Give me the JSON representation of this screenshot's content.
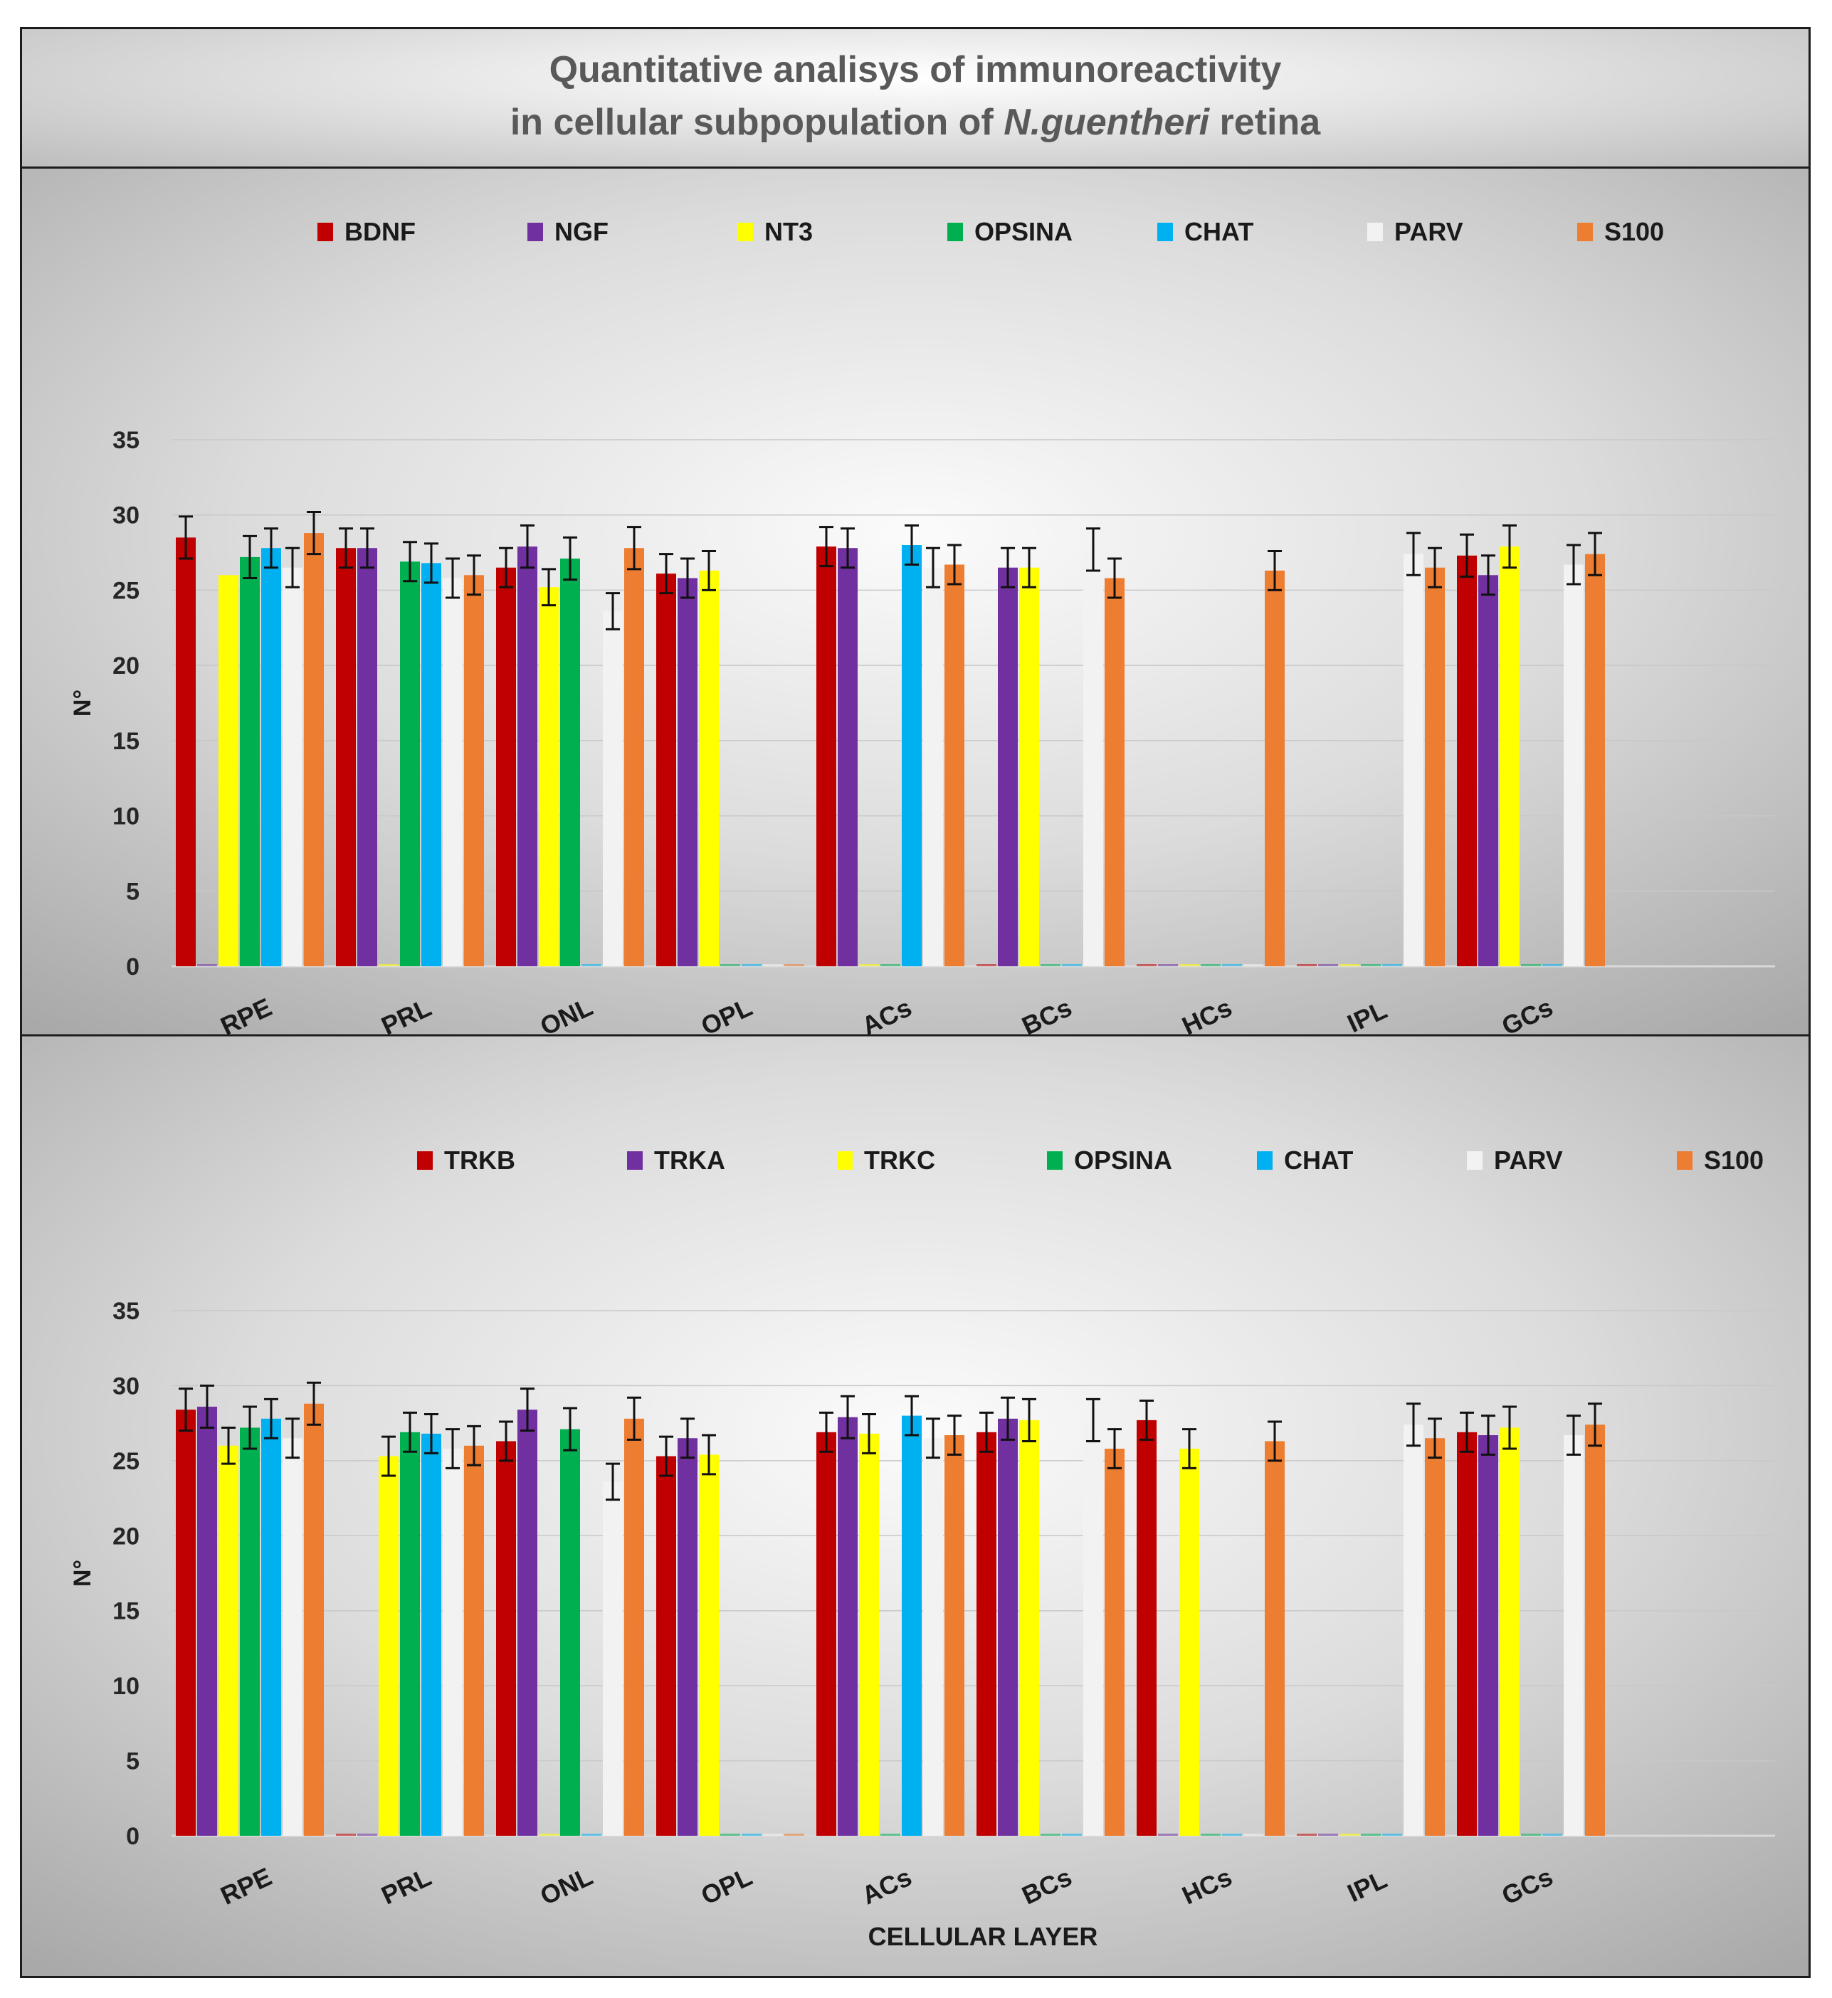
{
  "title": {
    "line1": "Quantitative analisys of immunoreactivity",
    "line2_prefix": "in cellular subpopulation of ",
    "line2_italic": "N.guentheri",
    "line2_suffix": " retina"
  },
  "colors": [
    "#c00000",
    "#7030a0",
    "#ffff00",
    "#00b050",
    "#00b0f0",
    "#f2f2f2",
    "#ed7d31"
  ],
  "chart_data": [
    {
      "type": "bar",
      "title": "",
      "xlabel": "",
      "ylabel": "N°",
      "ylim": [
        0,
        35
      ],
      "yticks": [
        0,
        5,
        10,
        15,
        20,
        25,
        30,
        35
      ],
      "legend": "top",
      "categories": [
        "RPE",
        "PRL",
        "ONL",
        "OPL",
        "ACs",
        "BCs",
        "HCs",
        "IPL",
        "GCs"
      ],
      "series": [
        {
          "name": "BDNF",
          "values": [
            28.5,
            27.8,
            26.5,
            26.1,
            27.9,
            0,
            0,
            0,
            27.3
          ],
          "errors": [
            1.4,
            1.3,
            1.3,
            1.3,
            1.3,
            0,
            0,
            0,
            1.4
          ]
        },
        {
          "name": "NGF",
          "values": [
            0,
            27.8,
            27.9,
            25.8,
            27.8,
            26.5,
            0,
            0,
            26.0
          ],
          "errors": [
            0,
            1.3,
            1.4,
            1.3,
            1.3,
            1.3,
            0,
            0,
            1.3
          ]
        },
        {
          "name": "NT3",
          "values": [
            26.0,
            0,
            25.2,
            26.3,
            0,
            26.5,
            0,
            0,
            27.9
          ],
          "errors": [
            0,
            0,
            1.2,
            1.3,
            0,
            1.3,
            0,
            0,
            1.4
          ]
        },
        {
          "name": "OPSINA",
          "values": [
            27.2,
            26.9,
            27.1,
            0,
            0,
            0,
            0,
            0,
            0
          ],
          "errors": [
            1.4,
            1.3,
            1.4,
            0,
            0,
            0,
            0,
            0,
            0
          ]
        },
        {
          "name": "CHAT",
          "values": [
            27.8,
            26.8,
            0,
            0,
            28.0,
            0,
            0,
            0,
            0
          ],
          "errors": [
            1.3,
            1.3,
            0,
            0,
            1.3,
            0,
            0,
            0,
            0
          ]
        },
        {
          "name": "PARV",
          "values": [
            26.5,
            25.8,
            23.6,
            0,
            26.5,
            27.7,
            0,
            27.4,
            26.7
          ],
          "errors": [
            1.3,
            1.3,
            1.2,
            0,
            1.3,
            1.4,
            0,
            1.4,
            1.3
          ]
        },
        {
          "name": "S100",
          "values": [
            28.8,
            26.0,
            27.8,
            0,
            26.7,
            25.8,
            26.3,
            26.5,
            27.4
          ],
          "errors": [
            1.4,
            1.3,
            1.4,
            0,
            1.3,
            1.3,
            1.3,
            1.3,
            1.4
          ]
        }
      ]
    },
    {
      "type": "bar",
      "title": "",
      "xlabel": "CELLULAR LAYER",
      "ylabel": "N°",
      "ylim": [
        0,
        35
      ],
      "yticks": [
        0,
        5,
        10,
        15,
        20,
        25,
        30,
        35
      ],
      "legend": "top",
      "categories": [
        "RPE",
        "PRL",
        "ONL",
        "OPL",
        "ACs",
        "BCs",
        "HCs",
        "IPL",
        "GCs"
      ],
      "series": [
        {
          "name": "TRKB",
          "values": [
            28.4,
            0,
            26.3,
            25.3,
            26.9,
            26.9,
            27.7,
            0,
            26.9
          ],
          "errors": [
            1.4,
            0,
            1.3,
            1.3,
            1.3,
            1.3,
            1.3,
            0,
            1.3
          ]
        },
        {
          "name": "TRKA",
          "values": [
            28.6,
            0,
            28.4,
            26.5,
            27.9,
            27.8,
            0,
            0,
            26.7
          ],
          "errors": [
            1.4,
            0,
            1.4,
            1.3,
            1.4,
            1.4,
            0,
            0,
            1.3
          ]
        },
        {
          "name": "TRKC",
          "values": [
            26.0,
            25.3,
            0,
            25.4,
            26.8,
            27.7,
            25.8,
            0,
            27.2
          ],
          "errors": [
            1.2,
            1.3,
            0,
            1.3,
            1.3,
            1.4,
            1.3,
            0,
            1.4
          ]
        },
        {
          "name": "OPSINA",
          "values": [
            27.2,
            26.9,
            27.1,
            0,
            0,
            0,
            0,
            0,
            0
          ],
          "errors": [
            1.4,
            1.3,
            1.4,
            0,
            0,
            0,
            0,
            0,
            0
          ]
        },
        {
          "name": "CHAT",
          "values": [
            27.8,
            26.8,
            0,
            0,
            28.0,
            0,
            0,
            0,
            0
          ],
          "errors": [
            1.3,
            1.3,
            0,
            0,
            1.3,
            0,
            0,
            0,
            0
          ]
        },
        {
          "name": "PARV",
          "values": [
            26.5,
            25.8,
            23.6,
            0,
            26.5,
            27.7,
            0,
            27.4,
            26.7
          ],
          "errors": [
            1.3,
            1.3,
            1.2,
            0,
            1.3,
            1.4,
            0,
            1.4,
            1.3
          ]
        },
        {
          "name": "S100",
          "values": [
            28.8,
            26.0,
            27.8,
            0,
            26.7,
            25.8,
            26.3,
            26.5,
            27.4
          ],
          "errors": [
            1.4,
            1.3,
            1.4,
            0,
            1.3,
            1.3,
            1.3,
            1.3,
            1.4
          ]
        }
      ]
    }
  ]
}
